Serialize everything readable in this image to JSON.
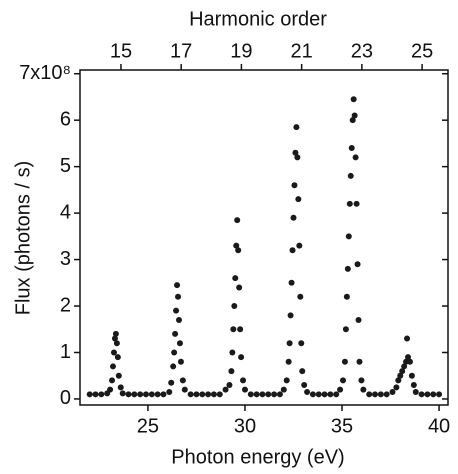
{
  "chart_data": {
    "type": "scatter",
    "x2label": "Harmonic order",
    "xlabel": "Photon energy (eV)",
    "ylabel": "Flux  (photons / s)",
    "color": "#1a1a1a",
    "xlim": [
      21.5,
      40.46
    ],
    "xticks": [
      25,
      30,
      35,
      40
    ],
    "x2lim": [
      13.64,
      25.86
    ],
    "x2ticks": [
      15,
      17,
      19,
      21,
      23,
      25
    ],
    "ylim": [
      -0.13,
      7.08
    ],
    "yticks": [
      0,
      1,
      2,
      3,
      4,
      5,
      6,
      {
        "value": 7,
        "label": "7x10⁸"
      }
    ],
    "x": [
      22.0,
      22.3,
      22.6,
      22.9,
      23.05,
      23.15,
      23.2,
      23.25,
      23.3,
      23.35,
      23.4,
      23.45,
      23.5,
      23.6,
      23.7,
      24.0,
      24.3,
      24.6,
      24.9,
      25.2,
      25.5,
      25.8,
      26.1,
      26.2,
      26.3,
      26.35,
      26.4,
      26.45,
      26.5,
      26.55,
      26.6,
      26.65,
      26.7,
      26.8,
      26.9,
      27.2,
      27.5,
      27.8,
      28.1,
      28.4,
      28.7,
      29.0,
      29.2,
      29.3,
      29.35,
      29.4,
      29.45,
      29.5,
      29.55,
      29.6,
      29.65,
      29.7,
      29.75,
      29.8,
      29.9,
      30.0,
      30.3,
      30.6,
      30.9,
      31.2,
      31.5,
      31.8,
      32.0,
      32.15,
      32.25,
      32.3,
      32.35,
      32.4,
      32.45,
      32.5,
      32.55,
      32.6,
      32.65,
      32.7,
      32.75,
      32.8,
      32.85,
      32.9,
      32.95,
      33.05,
      33.2,
      33.5,
      33.8,
      34.1,
      34.4,
      34.7,
      34.9,
      35.05,
      35.15,
      35.2,
      35.25,
      35.3,
      35.35,
      35.4,
      35.45,
      35.5,
      35.55,
      35.6,
      35.65,
      35.7,
      35.75,
      35.8,
      35.85,
      35.9,
      36.0,
      36.1,
      36.4,
      36.7,
      37.0,
      37.3,
      37.6,
      37.8,
      37.9,
      38.0,
      38.1,
      38.2,
      38.3,
      38.35,
      38.4,
      38.5,
      38.6,
      38.7,
      38.8,
      39.1,
      39.4,
      39.7,
      40.0
    ],
    "values": [
      0.1,
      0.1,
      0.1,
      0.12,
      0.2,
      0.4,
      0.7,
      1.0,
      1.3,
      1.4,
      1.2,
      0.9,
      0.5,
      0.25,
      0.12,
      0.1,
      0.1,
      0.1,
      0.1,
      0.1,
      0.1,
      0.1,
      0.15,
      0.35,
      0.7,
      1.0,
      1.4,
      1.9,
      2.45,
      2.2,
      1.7,
      1.2,
      0.8,
      0.4,
      0.2,
      0.1,
      0.1,
      0.1,
      0.1,
      0.1,
      0.1,
      0.2,
      0.3,
      0.6,
      1.0,
      1.5,
      2.0,
      2.6,
      3.3,
      3.85,
      3.2,
      2.4,
      1.5,
      0.9,
      0.4,
      0.2,
      0.1,
      0.1,
      0.1,
      0.1,
      0.1,
      0.1,
      0.2,
      0.4,
      0.8,
      1.2,
      1.8,
      2.5,
      3.2,
      3.9,
      4.6,
      5.3,
      5.85,
      5.2,
      4.3,
      3.3,
      2.2,
      1.2,
      0.6,
      0.3,
      0.15,
      0.1,
      0.1,
      0.1,
      0.1,
      0.1,
      0.2,
      0.4,
      0.8,
      1.5,
      2.2,
      2.8,
      3.5,
      4.2,
      4.8,
      5.4,
      6.0,
      6.45,
      6.1,
      5.2,
      4.2,
      2.9,
      1.7,
      0.8,
      0.4,
      0.2,
      0.1,
      0.1,
      0.1,
      0.1,
      0.15,
      0.25,
      0.4,
      0.5,
      0.6,
      0.7,
      0.8,
      1.3,
      0.9,
      0.8,
      0.5,
      0.3,
      0.15,
      0.1,
      0.1,
      0.1,
      0.1
    ]
  }
}
